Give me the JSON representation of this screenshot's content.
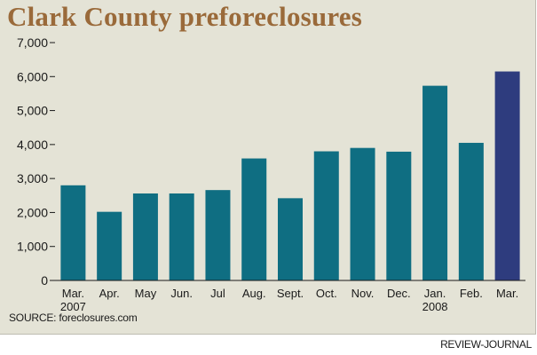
{
  "title": "Clark County preforeclosures",
  "source": "SOURCE: foreclosures.com",
  "credit": "REVIEW-JOURNAL",
  "colors": {
    "bar": "#0f6e82",
    "highlight_bar": "#2e3c7e",
    "title": "#9a6a3a",
    "background": "#e4e3d6"
  },
  "chart_data": {
    "type": "bar",
    "title": "Clark County preforeclosures",
    "categories": [
      "Mar.",
      "Apr.",
      "May",
      "Jun.",
      "Jul",
      "Aug.",
      "Sept.",
      "Oct.",
      "Nov.",
      "Dec.",
      "Jan.",
      "Feb.",
      "Mar."
    ],
    "category_sublabels": [
      "2007",
      "",
      "",
      "",
      "",
      "",
      "",
      "",
      "",
      "",
      "2008",
      "",
      ""
    ],
    "values": [
      2800,
      2020,
      2560,
      2560,
      2660,
      3590,
      2420,
      3800,
      3900,
      3790,
      5730,
      4050,
      6150
    ],
    "highlight_index": 12,
    "ylim": [
      0,
      7000
    ],
    "yticks": [
      0,
      1000,
      2000,
      3000,
      4000,
      5000,
      6000,
      7000
    ],
    "ytick_labels": [
      "0",
      "1,000",
      "2,000",
      "3,000",
      "4,000",
      "5,000",
      "6,000",
      "7,000"
    ],
    "xlabel": "",
    "ylabel": "",
    "grid": false,
    "legend": "none"
  }
}
